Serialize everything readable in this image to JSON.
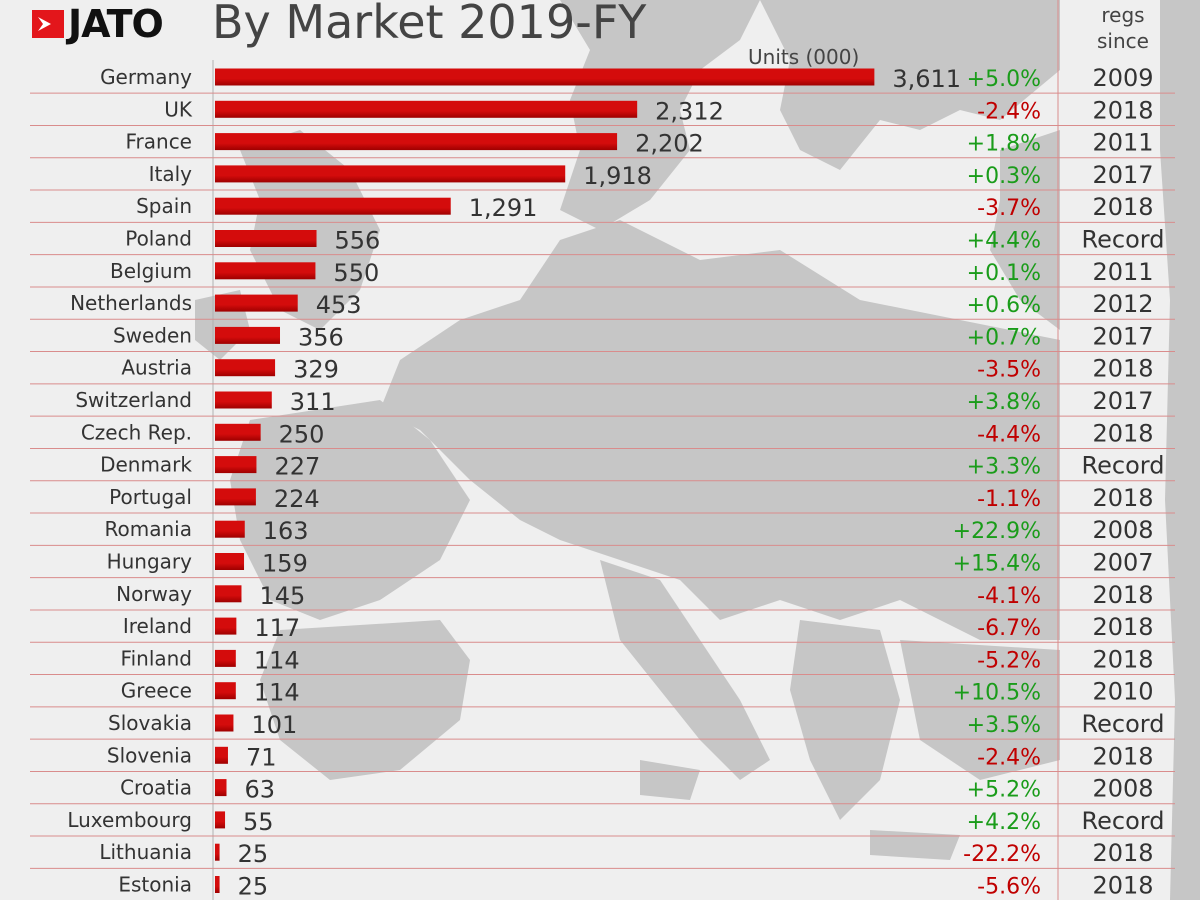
{
  "logo_text": "JATO",
  "title": "By Market 2019-FY",
  "units_label": "Units (000)",
  "since_header": [
    "regs",
    "since"
  ],
  "colors": {
    "bar": "#d40c0c",
    "bar_dark": "#9e0000",
    "positive": "#1a9c1a",
    "negative": "#c00000",
    "row_line": "#d98c8c",
    "map": "#c6c6c6"
  },
  "chart_data": {
    "type": "bar",
    "orientation": "horizontal",
    "title": "By Market 2019-FY",
    "xlabel": "Units (000)",
    "categories": [
      "Germany",
      "UK",
      "France",
      "Italy",
      "Spain",
      "Poland",
      "Belgium",
      "Netherlands",
      "Sweden",
      "Austria",
      "Switzerland",
      "Czech Rep.",
      "Denmark",
      "Portugal",
      "Romania",
      "Hungary",
      "Norway",
      "Ireland",
      "Finland",
      "Greece",
      "Slovakia",
      "Slovenia",
      "Croatia",
      "Luxembourg",
      "Lithuania",
      "Estonia"
    ],
    "values": [
      3611,
      2312,
      2202,
      1918,
      1291,
      556,
      550,
      453,
      356,
      329,
      311,
      250,
      227,
      224,
      163,
      159,
      145,
      117,
      114,
      114,
      101,
      71,
      63,
      55,
      25,
      25
    ],
    "value_labels": [
      "3,611",
      "2,312",
      "2,202",
      "1,918",
      "1,291",
      "556",
      "550",
      "453",
      "356",
      "329",
      "311",
      "250",
      "227",
      "224",
      "163",
      "159",
      "145",
      "117",
      "114",
      "114",
      "101",
      "71",
      "63",
      "55",
      "25",
      "25"
    ],
    "changes": [
      "+5.0%",
      "-2.4%",
      "+1.8%",
      "+0.3%",
      "-3.7%",
      "+4.4%",
      "+0.1%",
      "+0.6%",
      "+0.7%",
      "-3.5%",
      "+3.8%",
      "-4.4%",
      "+3.3%",
      "-1.1%",
      "+22.9%",
      "+15.4%",
      "-4.1%",
      "-6.7%",
      "-5.2%",
      "+10.5%",
      "+3.5%",
      "-2.4%",
      "+5.2%",
      "+4.2%",
      "-22.2%",
      "-5.6%"
    ],
    "regs_since": [
      "2009",
      "2018",
      "2011",
      "2017",
      "2018",
      "Record",
      "2011",
      "2012",
      "2017",
      "2018",
      "2017",
      "2018",
      "Record",
      "2018",
      "2008",
      "2007",
      "2018",
      "2018",
      "2018",
      "2010",
      "Record",
      "2018",
      "2008",
      "Record",
      "2018",
      "2018"
    ]
  }
}
